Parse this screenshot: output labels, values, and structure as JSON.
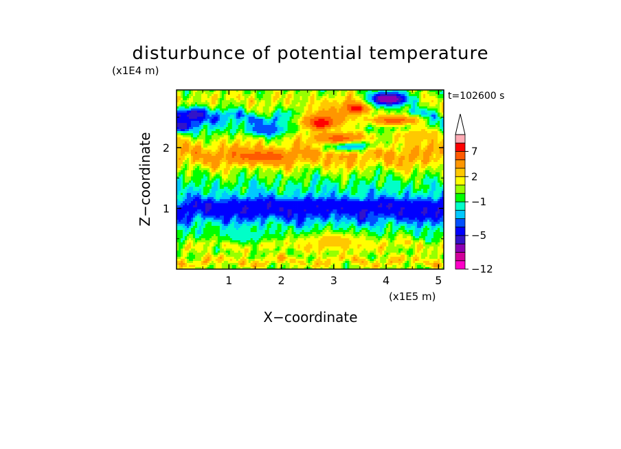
{
  "chart_data": {
    "type": "heatmap",
    "title": "disturbunce of potential temperature",
    "time_label": "t=102600 s",
    "xlabel": "X−coordinate",
    "ylabel": "Z−coordinate",
    "x_unit": "(x1E5 m)",
    "y_unit": "(x1E4 m)",
    "xlim": [
      0,
      5.1
    ],
    "ylim": [
      0,
      2.95
    ],
    "x_ticks": [
      {
        "value": 1,
        "label": "1"
      },
      {
        "value": 2,
        "label": "2"
      },
      {
        "value": 3,
        "label": "3"
      },
      {
        "value": 4,
        "label": "4"
      },
      {
        "value": 5,
        "label": "5"
      }
    ],
    "y_ticks": [
      {
        "value": 1,
        "label": "1"
      },
      {
        "value": 2,
        "label": "2"
      }
    ],
    "colorbar": {
      "levels": [
        -12,
        -10,
        -8,
        -6,
        -5,
        -4,
        -3,
        -2,
        -1,
        0,
        1,
        2,
        3,
        5,
        7,
        9,
        11
      ],
      "labels": [
        {
          "value": -12,
          "label": "−12"
        },
        {
          "value": -5,
          "label": "−5"
        },
        {
          "value": -1,
          "label": "−1"
        },
        {
          "value": 2,
          "label": "2"
        },
        {
          "value": 7,
          "label": "7"
        }
      ],
      "colors": [
        "#ff00c8",
        "#d2009b",
        "#8c00b4",
        "#3214c8",
        "#0000ff",
        "#0050ff",
        "#00c8ff",
        "#00ffc8",
        "#00ff00",
        "#96ff00",
        "#ffff00",
        "#ffc800",
        "#ff9600",
        "#ff5a00",
        "#ff0000",
        "#ffaab4",
        "#ffffff"
      ],
      "extend": "max"
    },
    "bands": [
      {
        "z": 0.03,
        "value": 0.5
      },
      {
        "z": 0.12,
        "value": 2.5
      },
      {
        "z": 0.25,
        "value": 0.2
      },
      {
        "z": 0.4,
        "value": 1.6
      },
      {
        "z": 0.55,
        "value": -0.6
      },
      {
        "z": 0.7,
        "value": -1.5
      },
      {
        "z": 0.85,
        "value": -3.5
      },
      {
        "z": 1.0,
        "value": -4.5
      },
      {
        "z": 1.15,
        "value": -2.5
      },
      {
        "z": 1.3,
        "value": -1.5
      },
      {
        "z": 1.45,
        "value": -0.7
      },
      {
        "z": 1.6,
        "value": 0.5
      },
      {
        "z": 1.75,
        "value": 2.5
      },
      {
        "z": 1.9,
        "value": 3.5
      },
      {
        "z": 2.05,
        "value": 2.0
      },
      {
        "z": 2.2,
        "value": 0.3
      },
      {
        "z": 2.35,
        "value": -1.5
      },
      {
        "z": 2.5,
        "value": -3.0
      },
      {
        "z": 2.65,
        "value": 0.5
      },
      {
        "z": 2.8,
        "value": 1.5
      },
      {
        "z": 2.95,
        "value": 0.2
      }
    ],
    "features": [
      {
        "x": 3.1,
        "z": 1.05,
        "rx": 2.4,
        "rz": 0.1,
        "value": -5
      },
      {
        "x": 1.5,
        "z": 1.0,
        "rx": 1.2,
        "rz": 0.12,
        "value": -5
      },
      {
        "x": 4.6,
        "z": 0.95,
        "rx": 0.6,
        "rz": 0.14,
        "value": -5
      },
      {
        "x": 2.8,
        "z": 2.45,
        "rx": 0.55,
        "rz": 0.2,
        "value": 5
      },
      {
        "x": 2.75,
        "z": 2.4,
        "rx": 0.2,
        "rz": 0.08,
        "value": 9
      },
      {
        "x": 3.4,
        "z": 2.65,
        "rx": 0.3,
        "rz": 0.15,
        "value": 6
      },
      {
        "x": 3.45,
        "z": 2.65,
        "rx": 0.12,
        "rz": 0.06,
        "value": 9
      },
      {
        "x": 4.15,
        "z": 2.45,
        "rx": 0.55,
        "rz": 0.1,
        "value": 6
      },
      {
        "x": 4.05,
        "z": 2.8,
        "rx": 0.4,
        "rz": 0.12,
        "value": -8
      },
      {
        "x": 0.35,
        "z": 2.55,
        "rx": 0.3,
        "rz": 0.12,
        "value": -6
      },
      {
        "x": 0.1,
        "z": 2.35,
        "rx": 0.2,
        "rz": 0.1,
        "value": -6
      },
      {
        "x": 1.6,
        "z": 1.85,
        "rx": 0.6,
        "rz": 0.1,
        "value": 6
      },
      {
        "x": 3.3,
        "z": 2.05,
        "rx": 0.45,
        "rz": 0.1,
        "value": -5
      },
      {
        "x": 3.1,
        "z": 2.15,
        "rx": 0.5,
        "rz": 0.1,
        "value": 6
      },
      {
        "x": 1.7,
        "z": 2.3,
        "rx": 0.4,
        "rz": 0.1,
        "value": -4
      },
      {
        "x": 3.0,
        "z": 0.45,
        "rx": 0.7,
        "rz": 0.15,
        "value": 2.5
      },
      {
        "x": 1.3,
        "z": 0.55,
        "rx": 0.6,
        "rz": 0.12,
        "value": -1.5
      },
      {
        "x": 4.6,
        "z": 2.2,
        "rx": 0.5,
        "rz": 0.12,
        "value": 3
      }
    ]
  }
}
